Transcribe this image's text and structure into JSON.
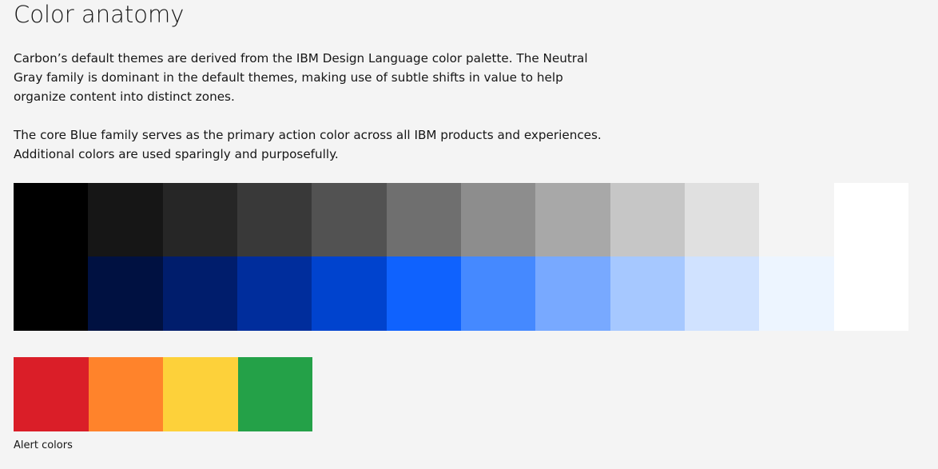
{
  "title": "Color anatomy",
  "paragraphs": {
    "p1": "Carbon’s default themes are derived from the IBM Design Language color palette. The Neutral Gray family is dominant in the default themes, making use of subtle shifts in value to help organize content into distinct zones.",
    "p2": "The core Blue family serves as the primary action color across all IBM products and experiences. Additional colors are used sparingly and purposefully."
  },
  "palette": {
    "gray_row": [
      "#000000",
      "#161616",
      "#262626",
      "#393939",
      "#525252",
      "#6f6f6f",
      "#8d8d8d",
      "#a8a8a8",
      "#c6c6c6",
      "#e0e0e0",
      "#f4f4f4",
      "#ffffff"
    ],
    "blue_row": [
      "#000000",
      "#001141",
      "#001d6c",
      "#002d9c",
      "#0043ce",
      "#0f62fe",
      "#4589ff",
      "#78a9ff",
      "#a6c8ff",
      "#d0e2ff",
      "#edf5ff",
      "#ffffff"
    ]
  },
  "alert": {
    "colors": [
      "#da1e28",
      "#ff832b",
      "#fdd13a",
      "#24a148"
    ],
    "caption": "Alert colors"
  }
}
